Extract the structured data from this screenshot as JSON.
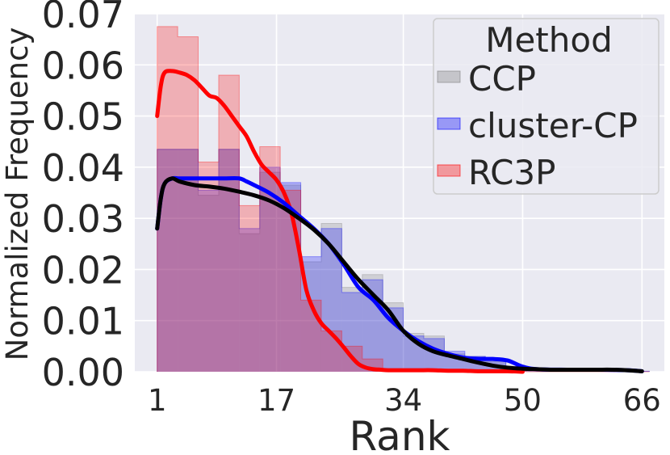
{
  "chart_data": {
    "type": "histogram",
    "xlabel": "Rank",
    "ylabel": "Normalized Frequency",
    "xlim": [
      -2,
      69
    ],
    "ylim": [
      0,
      0.07
    ],
    "x_ticks": [
      1,
      17,
      34,
      50,
      66
    ],
    "x_tick_labels": [
      "1",
      "17",
      "34",
      "50",
      "66"
    ],
    "y_ticks": [
      0,
      0.01,
      0.02,
      0.03,
      0.04,
      0.05,
      0.06,
      0.07
    ],
    "y_tick_labels": [
      "0.00",
      "0.01",
      "0.02",
      "0.03",
      "0.04",
      "0.05",
      "0.06",
      "0.07"
    ],
    "grid": true,
    "legend": {
      "title": "Method",
      "placement": "top-right"
    },
    "bin_edges": [
      1,
      3.75,
      6.5,
      9.25,
      12,
      14.75,
      17.5,
      20.25,
      23,
      25.75,
      28.5,
      31.25,
      34,
      36.75,
      39.5,
      42.25,
      45,
      47.75,
      50.5,
      53.25,
      56,
      58.75,
      61.5,
      64.25,
      67
    ],
    "series": [
      {
        "name": "CCP",
        "color": "#808080",
        "hist": [
          0.0435,
          0.0435,
          0.0345,
          0.0435,
          0.027,
          0.039,
          0.0365,
          0.0215,
          0.029,
          0.0165,
          0.019,
          0.0135,
          0.0075,
          0.007,
          0.0035,
          0.003,
          0.002,
          0.001,
          0.0005,
          0.0003,
          0.0002,
          0.0002,
          0.0001,
          0.0001
        ],
        "kde_x": [
          1,
          1.5,
          2,
          3,
          4,
          6,
          8,
          10,
          12,
          14,
          16,
          18,
          20,
          22,
          24,
          26,
          28,
          30,
          32,
          34,
          36,
          38,
          40,
          42,
          44,
          46,
          48,
          50,
          52,
          54,
          56,
          58,
          60,
          62,
          64,
          66
        ],
        "kde_y": [
          0.028,
          0.034,
          0.0368,
          0.0378,
          0.0372,
          0.0365,
          0.0362,
          0.0358,
          0.0352,
          0.0345,
          0.0335,
          0.032,
          0.03,
          0.0278,
          0.025,
          0.0215,
          0.018,
          0.015,
          0.012,
          0.008,
          0.0055,
          0.004,
          0.0032,
          0.0025,
          0.0018,
          0.0012,
          0.0008,
          0.0006,
          0.0005,
          0.0004,
          0.0004,
          0.0004,
          0.0004,
          0.0004,
          0.0003,
          0.0001
        ]
      },
      {
        "name": "cluster-CP",
        "color": "#0000ff",
        "hist": [
          0.0435,
          0.0435,
          0.0355,
          0.0435,
          0.028,
          0.04,
          0.037,
          0.0225,
          0.028,
          0.0155,
          0.018,
          0.0125,
          0.007,
          0.0065,
          0.004,
          0.003,
          0.0025,
          0.001,
          0.0005,
          0.0003,
          0.0002,
          0.0002,
          0.0001,
          0.0001
        ],
        "kde_x": [
          1,
          1.5,
          2,
          3,
          4,
          6,
          8,
          10,
          12,
          13,
          14,
          16,
          18,
          20,
          22,
          24,
          26,
          28,
          30,
          32,
          34,
          36,
          38,
          40,
          42,
          44,
          46,
          48,
          50,
          52,
          56,
          60,
          64,
          66
        ],
        "kde_y": [
          0.028,
          0.034,
          0.0368,
          0.0378,
          0.0378,
          0.0378,
          0.0378,
          0.0378,
          0.0378,
          0.0372,
          0.0365,
          0.035,
          0.033,
          0.0305,
          0.028,
          0.025,
          0.021,
          0.0165,
          0.014,
          0.0105,
          0.008,
          0.006,
          0.0045,
          0.0035,
          0.0028,
          0.0025,
          0.0025,
          0.0022,
          0.001,
          0.0005,
          0.0004,
          0.0004,
          0.0003,
          0.0001
        ]
      },
      {
        "name": "RC3P",
        "color": "#ff0000",
        "hist": [
          0.0675,
          0.0655,
          0.041,
          0.058,
          0.0325,
          0.044,
          0.0355,
          0.014,
          0.008,
          0.005,
          0.0025,
          0.0005,
          0.0003,
          0.0002,
          0.0001,
          0.0001,
          0.0001,
          0.0001,
          0,
          0,
          0,
          0,
          0,
          0
        ],
        "kde_x": [
          1,
          1.5,
          2,
          3,
          4,
          5,
          6,
          7,
          8,
          9,
          10,
          11,
          12,
          13,
          14,
          15,
          16,
          17,
          18,
          19,
          20,
          21,
          22,
          23,
          24,
          25,
          26,
          27,
          28,
          29,
          30,
          31,
          32,
          34,
          36,
          38,
          40,
          42,
          44,
          46,
          48,
          50
        ],
        "kde_y": [
          0.05,
          0.056,
          0.0585,
          0.0588,
          0.0585,
          0.058,
          0.057,
          0.0555,
          0.054,
          0.0535,
          0.052,
          0.05,
          0.048,
          0.046,
          0.043,
          0.0405,
          0.039,
          0.0375,
          0.035,
          0.031,
          0.024,
          0.016,
          0.012,
          0.0095,
          0.008,
          0.0065,
          0.0048,
          0.003,
          0.0015,
          0.0008,
          0.0005,
          0.0004,
          0.0003,
          0.0003,
          0.0003,
          0.0003,
          0.0002,
          0.0002,
          0.0001,
          0.0001,
          0.0001,
          0.0
        ]
      }
    ]
  }
}
